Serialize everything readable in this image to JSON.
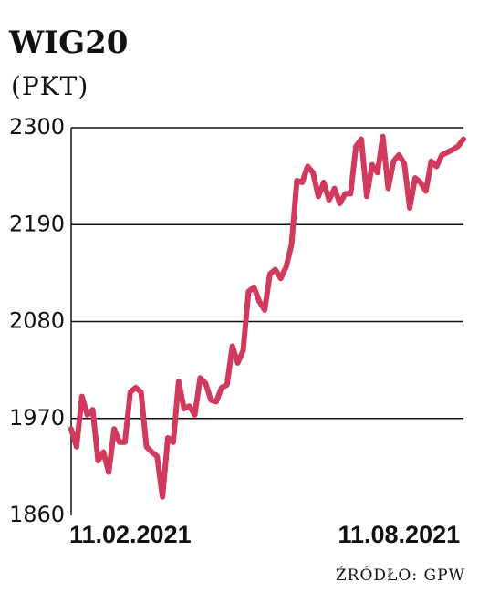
{
  "chart_data": {
    "type": "line",
    "title": "WIG20",
    "subtitle": "(PKT)",
    "source": "ŹRÓDŁO: GPW",
    "categories": [
      null,
      null,
      null,
      null,
      null,
      null,
      null,
      null,
      null,
      null,
      null,
      "11.02.2021",
      null,
      null,
      null,
      null,
      null,
      null,
      null,
      null,
      null,
      null,
      null,
      null,
      null,
      null,
      null,
      null,
      null,
      null,
      null,
      null,
      null,
      null,
      null,
      null,
      null,
      null,
      null,
      null,
      null,
      null,
      null,
      null,
      null,
      null,
      null,
      null,
      null,
      null,
      null,
      null,
      null,
      null,
      null,
      null,
      null,
      null,
      null,
      null,
      null,
      "11.08.2021",
      null,
      null,
      null,
      null,
      null,
      null,
      null,
      null,
      null,
      null,
      null,
      null
    ],
    "values": [
      1958,
      1938,
      1995,
      1974,
      1980,
      1922,
      1932,
      1909,
      1958,
      1943,
      1943,
      2000,
      2005,
      2000,
      1938,
      1932,
      1927,
      1881,
      1948,
      1943,
      2012,
      1981,
      1984,
      1974,
      2016,
      2010,
      1991,
      1989,
      2005,
      2008,
      2052,
      2033,
      2047,
      2114,
      2119,
      2103,
      2093,
      2134,
      2139,
      2129,
      2142,
      2167,
      2240,
      2238,
      2256,
      2249,
      2222,
      2238,
      2218,
      2231,
      2214,
      2225,
      2225,
      2279,
      2287,
      2222,
      2258,
      2249,
      2290,
      2231,
      2262,
      2269,
      2259,
      2209,
      2243,
      2238,
      2228,
      2262,
      2256,
      2269,
      2272,
      2275,
      2279,
      2287
    ],
    "color": "#d13a5c",
    "ylim": [
      1860,
      2300
    ],
    "yticks": [
      1860,
      1970,
      2080,
      2190,
      2300
    ],
    "grid": true
  }
}
